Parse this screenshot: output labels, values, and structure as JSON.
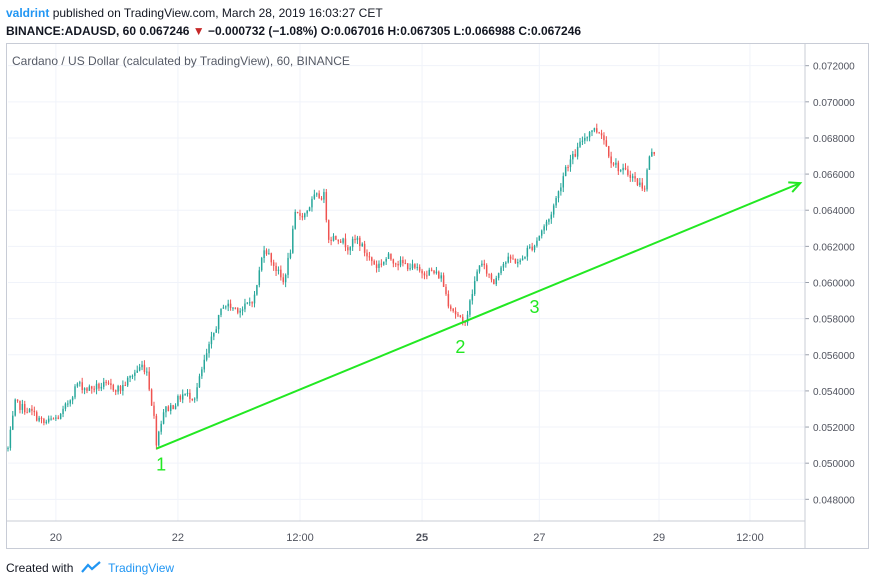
{
  "header": {
    "author": "valdrint",
    "published_text": "published on TradingView.com, March 28, 2019 16:03:27 CET",
    "symbol": "BINANCE:ADAUSD, 60",
    "last": "0.067246",
    "change_arrow": "▼",
    "change": "−0.000732 (−1.08%)",
    "o_label": "O:",
    "o": "0.067016",
    "h_label": "H:",
    "h": "0.067305",
    "l_label": "L:",
    "l": "0.066988",
    "c_label": "C:",
    "c": "0.067246"
  },
  "footer": {
    "created_with": "Created with",
    "brand": "TradingView"
  },
  "colors": {
    "up": "#26a69a",
    "down": "#ef5350",
    "annotation": "#22e822",
    "grid": "#f0f3fa"
  },
  "chart_data": {
    "type": "candlestick",
    "title": "Cardano / US Dollar (calculated by TradingView), 60, BINANCE",
    "x_tick_labels": [
      "20",
      "22",
      "12:00",
      "25",
      "27",
      "29",
      "12:00"
    ],
    "x_tick_index": [
      20,
      71,
      122,
      173,
      222,
      272,
      310
    ],
    "x_tick_bold": [
      false,
      false,
      false,
      true,
      false,
      false,
      false
    ],
    "y_ticks": [
      0.048,
      0.05,
      0.052,
      0.054,
      0.056,
      0.058,
      0.06,
      0.062,
      0.064,
      0.066,
      0.068,
      0.07,
      0.072
    ],
    "ylim": [
      0.0468,
      0.0732
    ],
    "xlim": [
      0,
      333
    ],
    "grid": true,
    "anchors": [
      [
        0,
        0.0508
      ],
      [
        3,
        0.0533
      ],
      [
        10,
        0.0528
      ],
      [
        15,
        0.0522
      ],
      [
        22,
        0.0526
      ],
      [
        26,
        0.0536
      ],
      [
        29,
        0.0544
      ],
      [
        33,
        0.0541
      ],
      [
        40,
        0.0543
      ],
      [
        47,
        0.0541
      ],
      [
        52,
        0.0549
      ],
      [
        56,
        0.0554
      ],
      [
        58,
        0.0551
      ],
      [
        61,
        0.0525
      ],
      [
        62,
        0.0512
      ],
      [
        65,
        0.0529
      ],
      [
        69,
        0.0532
      ],
      [
        73,
        0.0538
      ],
      [
        78,
        0.0537
      ],
      [
        82,
        0.0556
      ],
      [
        86,
        0.0572
      ],
      [
        90,
        0.0588
      ],
      [
        94,
        0.0586
      ],
      [
        98,
        0.0585
      ],
      [
        103,
        0.0592
      ],
      [
        107,
        0.062
      ],
      [
        111,
        0.061
      ],
      [
        115,
        0.06
      ],
      [
        118,
        0.0618
      ],
      [
        120,
        0.0637
      ],
      [
        124,
        0.0638
      ],
      [
        128,
        0.0647
      ],
      [
        132,
        0.0648
      ],
      [
        134,
        0.0625
      ],
      [
        138,
        0.0625
      ],
      [
        142,
        0.062
      ],
      [
        146,
        0.0624
      ],
      [
        150,
        0.0615
      ],
      [
        154,
        0.0609
      ],
      [
        159,
        0.0614
      ],
      [
        163,
        0.0611
      ],
      [
        168,
        0.0609
      ],
      [
        172,
        0.0606
      ],
      [
        177,
        0.0606
      ],
      [
        181,
        0.0603
      ],
      [
        184,
        0.0589
      ],
      [
        187,
        0.0583
      ],
      [
        190,
        0.0577
      ],
      [
        192,
        0.0583
      ],
      [
        195,
        0.06
      ],
      [
        197,
        0.0611
      ],
      [
        200,
        0.0606
      ],
      [
        203,
        0.06
      ],
      [
        206,
        0.061
      ],
      [
        210,
        0.0613
      ],
      [
        214,
        0.0611
      ],
      [
        217,
        0.0618
      ],
      [
        220,
        0.0621
      ],
      [
        223,
        0.0629
      ],
      [
        226,
        0.0635
      ],
      [
        230,
        0.065
      ],
      [
        233,
        0.0664
      ],
      [
        237,
        0.0671
      ],
      [
        240,
        0.0679
      ],
      [
        244,
        0.0685
      ],
      [
        248,
        0.0683
      ],
      [
        252,
        0.0668
      ],
      [
        256,
        0.0662
      ],
      [
        260,
        0.066
      ],
      [
        263,
        0.0655
      ],
      [
        266,
        0.0653
      ],
      [
        268,
        0.067
      ],
      [
        270,
        0.0672
      ]
    ],
    "annotations": {
      "trendline": {
        "x1": 62,
        "y1": 0.0508,
        "x2": 331,
        "y2": 0.0655
      },
      "labels": [
        {
          "text": "1",
          "x": 64,
          "y": 0.0496
        },
        {
          "text": "2",
          "x": 189,
          "y": 0.0561
        },
        {
          "text": "3",
          "x": 220,
          "y": 0.0583
        }
      ]
    }
  }
}
